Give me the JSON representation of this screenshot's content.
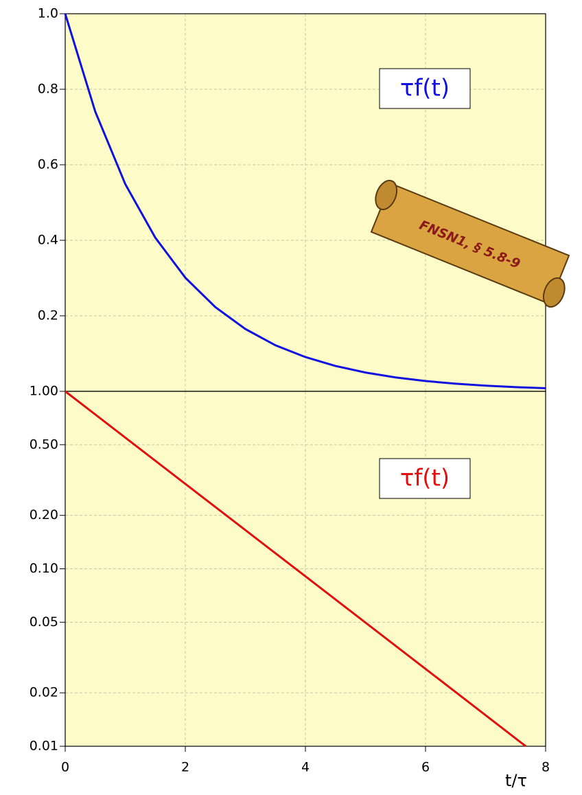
{
  "chart_data": [
    {
      "type": "line",
      "x": [
        0,
        0.5,
        1,
        1.5,
        2,
        2.5,
        3,
        3.5,
        4,
        4.5,
        5,
        5.5,
        6,
        6.5,
        7,
        7.5,
        8
      ],
      "series": [
        {
          "name": "τf(t)",
          "color": "#1010e0",
          "values": [
            1,
            0.741,
            0.549,
            0.407,
            0.301,
            0.223,
            0.165,
            0.122,
            0.0907,
            0.0672,
            0.0498,
            0.0369,
            0.0273,
            0.0202,
            0.015,
            0.0111,
            0.0082
          ]
        }
      ],
      "xlim": [
        0,
        8
      ],
      "ylim": [
        0,
        1
      ],
      "yticks": [
        0.2,
        0.4,
        0.6,
        0.8,
        {
          "value": 1,
          "label": "1.0"
        }
      ],
      "grid": true,
      "log_y": false,
      "annotation": "FNSN1, § 5.8-9"
    },
    {
      "type": "line",
      "x": [
        0,
        2,
        4,
        6,
        7.67
      ],
      "series": [
        {
          "name": "τf(t)",
          "color": "#e01010",
          "values": [
            1,
            0.301,
            0.0907,
            0.0273,
            0.01
          ]
        }
      ],
      "xlim": [
        0,
        8
      ],
      "ylim": [
        0.01,
        1
      ],
      "xticks": [
        0,
        2,
        4,
        6,
        8
      ],
      "yticks": [
        {
          "value": 1,
          "label": "1.00"
        },
        {
          "value": 0.5,
          "label": "0.50"
        },
        {
          "value": 0.2,
          "label": "0.20"
        },
        {
          "value": 0.1,
          "label": "0.10"
        },
        {
          "value": 0.05,
          "label": "0.05"
        },
        {
          "value": 0.02,
          "label": "0.02"
        },
        {
          "value": 0.01,
          "label": "0.01"
        }
      ],
      "grid": true,
      "log_y": true,
      "xlabel": "t/τ"
    }
  ]
}
